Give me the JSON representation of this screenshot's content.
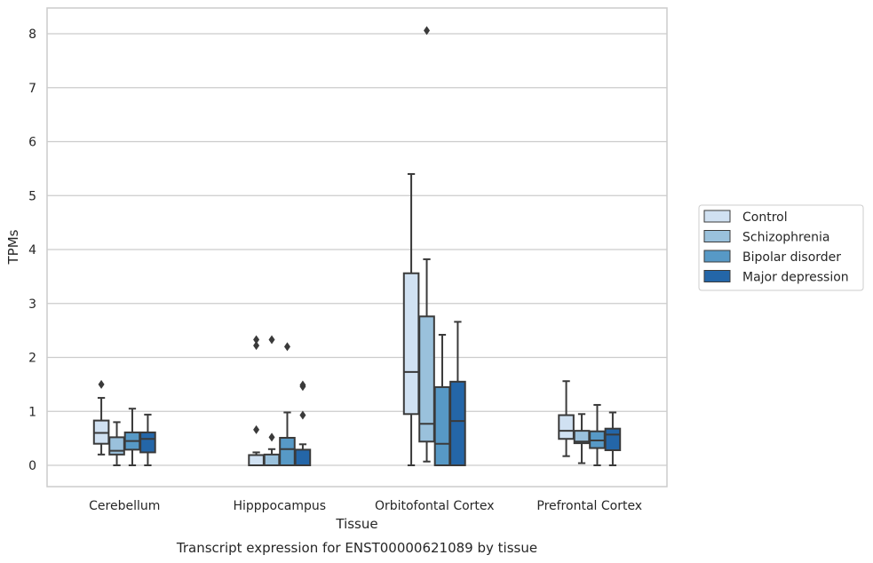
{
  "chart_data": {
    "type": "box",
    "xlabel": "Tissue",
    "ylabel": "TPMs",
    "caption": "Transcript expression for ENST00000621089 by tissue",
    "ylim": [
      -0.4,
      8.5
    ],
    "yticks": [
      0,
      1,
      2,
      3,
      4,
      5,
      6,
      7,
      8
    ],
    "grid": "horizontal",
    "legend_position": "right",
    "categories": [
      "Cerebellum",
      "Hipppocampus",
      "Orbitofontal Cortex",
      "Prefrontal Cortex"
    ],
    "series": [
      {
        "name": "Control",
        "color": "#d0e1f2",
        "boxes": [
          {
            "whislo": 0.2,
            "q1": 0.4,
            "med": 0.6,
            "q3": 0.83,
            "whishi": 1.25,
            "fliers": [
              1.5
            ]
          },
          {
            "whislo": 0.0,
            "q1": 0.0,
            "med": 0.0,
            "q3": 0.19,
            "whishi": 0.24,
            "fliers": [
              0.66,
              2.22,
              2.33
            ]
          },
          {
            "whislo": 0.0,
            "q1": 0.95,
            "med": 1.73,
            "q3": 3.56,
            "whishi": 5.4,
            "fliers": []
          },
          {
            "whislo": 0.17,
            "q1": 0.49,
            "med": 0.64,
            "q3": 0.93,
            "whishi": 1.56,
            "fliers": []
          }
        ]
      },
      {
        "name": "Schizophrenia",
        "color": "#9ac1dc",
        "boxes": [
          {
            "whislo": 0.0,
            "q1": 0.2,
            "med": 0.27,
            "q3": 0.52,
            "whishi": 0.8,
            "fliers": []
          },
          {
            "whislo": 0.0,
            "q1": 0.0,
            "med": 0.0,
            "q3": 0.2,
            "whishi": 0.3,
            "fliers": [
              0.52,
              2.33
            ]
          },
          {
            "whislo": 0.07,
            "q1": 0.44,
            "med": 0.77,
            "q3": 2.76,
            "whishi": 3.82,
            "fliers": [
              8.06
            ]
          },
          {
            "whislo": 0.04,
            "q1": 0.41,
            "med": 0.44,
            "q3": 0.64,
            "whishi": 0.95,
            "fliers": []
          }
        ]
      },
      {
        "name": "Bipolar disorder",
        "color": "#5799c6",
        "boxes": [
          {
            "whislo": 0.0,
            "q1": 0.29,
            "med": 0.45,
            "q3": 0.61,
            "whishi": 1.05,
            "fliers": []
          },
          {
            "whislo": 0.0,
            "q1": 0.0,
            "med": 0.3,
            "q3": 0.51,
            "whishi": 0.98,
            "fliers": [
              2.2
            ]
          },
          {
            "whislo": 0.0,
            "q1": 0.0,
            "med": 0.4,
            "q3": 1.45,
            "whishi": 2.42,
            "fliers": []
          },
          {
            "whislo": 0.0,
            "q1": 0.32,
            "med": 0.46,
            "q3": 0.63,
            "whishi": 1.12,
            "fliers": []
          }
        ]
      },
      {
        "name": "Major depression",
        "color": "#2466a8",
        "boxes": [
          {
            "whislo": 0.0,
            "q1": 0.24,
            "med": 0.49,
            "q3": 0.61,
            "whishi": 0.94,
            "fliers": []
          },
          {
            "whislo": 0.0,
            "q1": 0.0,
            "med": 0.0,
            "q3": 0.29,
            "whishi": 0.39,
            "fliers": [
              0.93,
              1.46,
              1.49
            ]
          },
          {
            "whislo": 0.0,
            "q1": 0.0,
            "med": 0.82,
            "q3": 1.55,
            "whishi": 2.66,
            "fliers": []
          },
          {
            "whislo": 0.0,
            "q1": 0.28,
            "med": 0.57,
            "q3": 0.68,
            "whishi": 0.98,
            "fliers": []
          }
        ]
      }
    ]
  }
}
